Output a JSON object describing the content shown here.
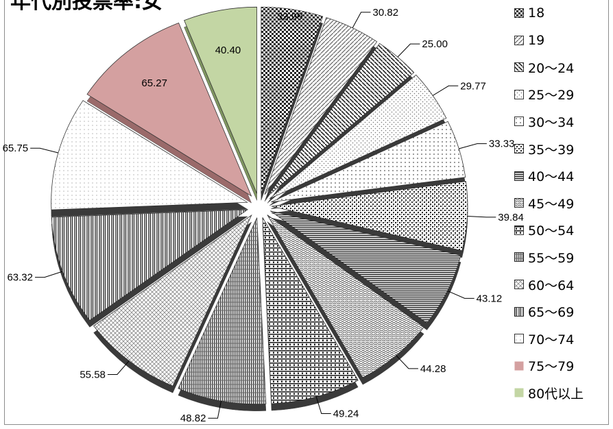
{
  "chart_data": {
    "type": "pie",
    "title": "年代別投票率:女",
    "categories": [
      "18",
      "19",
      "20〜24",
      "25〜29",
      "30〜34",
      "35〜39",
      "40〜44",
      "45〜49",
      "50〜54",
      "55〜59",
      "60〜64",
      "65〜69",
      "70〜74",
      "75〜79",
      "80代以上"
    ],
    "values": [
      33.99,
      30.82,
      25.0,
      29.77,
      33.33,
      39.84,
      43.12,
      44.28,
      49.24,
      48.82,
      55.58,
      63.32,
      65.75,
      65.27,
      40.4
    ],
    "value_labels": [
      "33.99",
      "30.82",
      "25.00",
      "29.77",
      "33.33",
      "39.84",
      "43.12",
      "44.28",
      "49.24",
      "48.82",
      "55.58",
      "63.32",
      "65.75",
      "65.27",
      "40.40"
    ],
    "legend_position": "right",
    "style": "exploded-3d-pie",
    "colors": {
      "75〜79": "#d4a0a0",
      "80代以上": "#c3d6a4"
    }
  }
}
